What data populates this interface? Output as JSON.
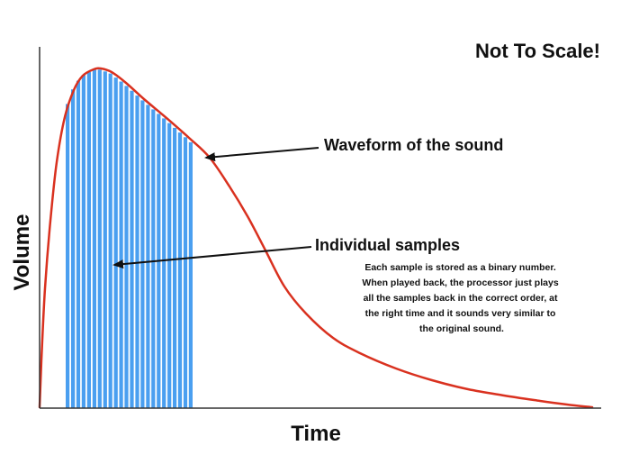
{
  "diagram": {
    "title": "Not To Scale!",
    "y_axis_label": "Volume",
    "x_axis_label": "Time",
    "waveform_label": "Waveform of the sound",
    "samples_label": "Individual samples",
    "description": [
      "Each sample is stored as a binary number.",
      "When played back, the processor just plays",
      "all the samples back in the correct order, at",
      "the right time and it sounds very similar to",
      "the original sound."
    ]
  },
  "colors": {
    "waveform": "#d9311f",
    "samples": "#4a9ff0",
    "axes": "#333333",
    "text": "#111111"
  },
  "icons": [
    "arrow-icon"
  ]
}
